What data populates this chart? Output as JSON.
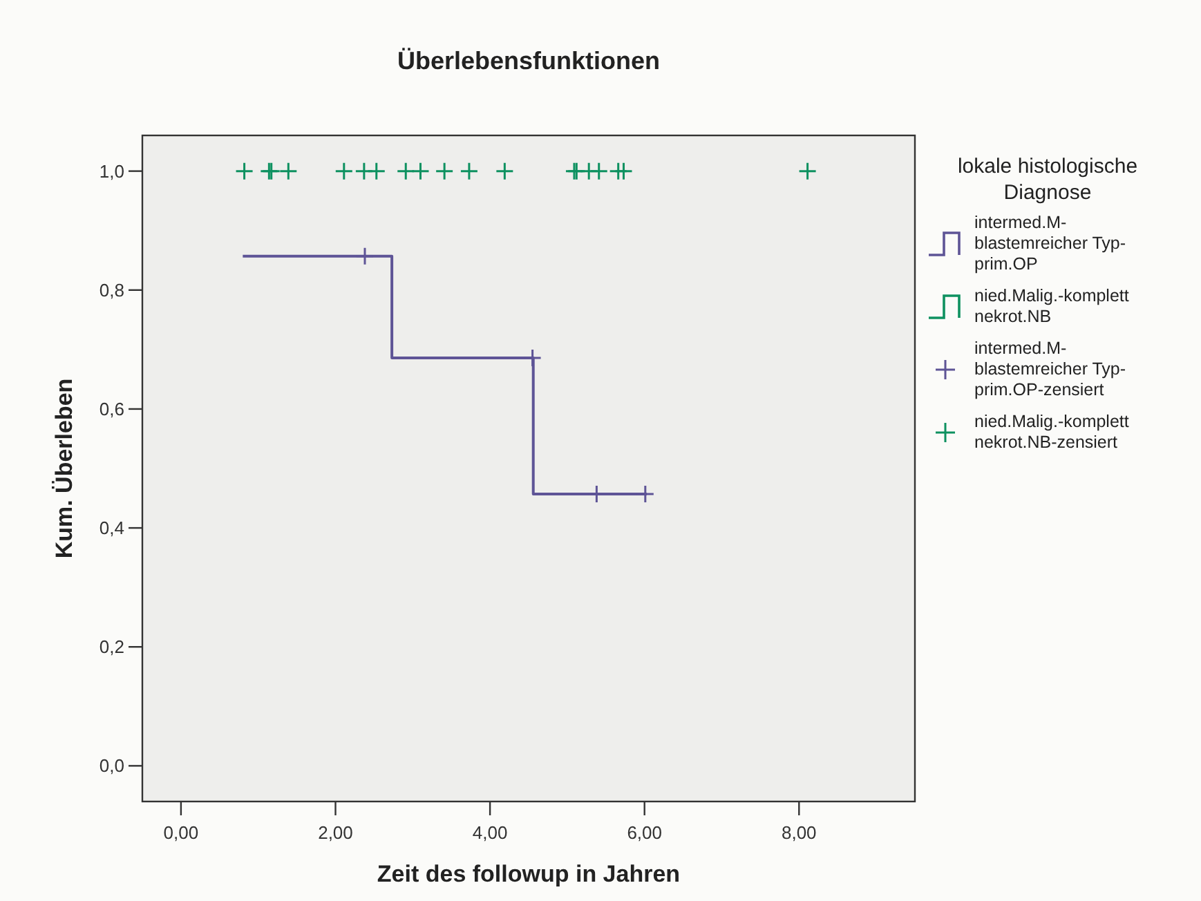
{
  "chart_data": {
    "type": "step",
    "title": "Überlebensfunktionen",
    "xlabel": "Zeit des followup in Jahren",
    "ylabel": "Kum. Überleben",
    "legend_title": "lokale histologische Diagnose",
    "legend": "right",
    "xlim": [
      -0.5,
      9.5
    ],
    "ylim": [
      -0.06,
      1.06
    ],
    "xticks": [
      {
        "value": 0,
        "label": "0,00"
      },
      {
        "value": 2,
        "label": "2,00"
      },
      {
        "value": 4,
        "label": "4,00"
      },
      {
        "value": 6,
        "label": "6,00"
      },
      {
        "value": 8,
        "label": "8,00"
      }
    ],
    "yticks": [
      {
        "value": 0,
        "label": "0,0"
      },
      {
        "value": 0.2,
        "label": "0,2"
      },
      {
        "value": 0.4,
        "label": "0,4"
      },
      {
        "value": 0.6,
        "label": "0,6"
      },
      {
        "value": 0.8,
        "label": "0,8"
      },
      {
        "value": 1,
        "label": "1,0"
      }
    ],
    "series": [
      {
        "name": "intermed.M-blastemreicher Typ-prim.OP",
        "color": "#5e5496",
        "x": [
          0.8,
          2.73,
          4.56,
          6.03
        ],
        "values": [
          0.857,
          0.686,
          0.457,
          0.457
        ]
      },
      {
        "name": "nied.Malig.-komplett nekrot.NB",
        "color": "#0e9160"
      },
      {
        "name": "intermed.M-blastemreicher Typ-prim.OP-zensiert",
        "type": "scatter",
        "marker": "cross",
        "color": "#5e5496",
        "x": [
          2.38,
          4.55,
          5.38,
          6.01
        ],
        "values": [
          0.857,
          0.686,
          0.457,
          0.457
        ]
      },
      {
        "name": "nied.Malig.-komplett nekrot.NB-zensiert",
        "type": "scatter",
        "marker": "cross",
        "color": "#0e9160",
        "x": [
          0.82,
          1.14,
          1.17,
          1.39,
          2.11,
          2.37,
          2.53,
          2.91,
          3.1,
          3.41,
          3.73,
          4.19,
          5.09,
          5.12,
          5.28,
          5.41,
          5.66,
          5.73,
          8.11
        ],
        "values": [
          1,
          1,
          1,
          1,
          1,
          1,
          1,
          1,
          1,
          1,
          1,
          1,
          1,
          1,
          1,
          1,
          1,
          1,
          1
        ]
      }
    ]
  }
}
